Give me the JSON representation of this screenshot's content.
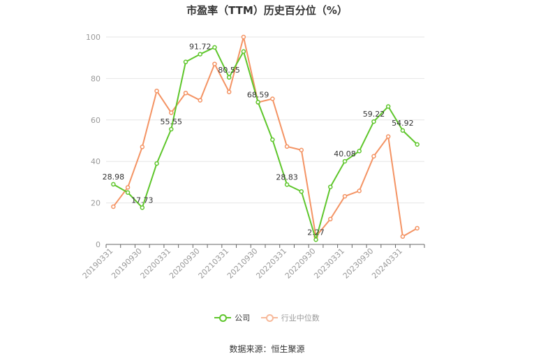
{
  "title": "市盈率（TTM）历史百分位（%）",
  "source": "数据来源：恒生聚源",
  "legend": [
    {
      "name": "公司",
      "color": "#5ec62b"
    },
    {
      "name": "行业中位数",
      "color": "#f49363"
    }
  ],
  "chart_data": {
    "type": "line",
    "title": "市盈率（TTM）历史百分位（%）",
    "ylim": [
      0,
      100
    ],
    "yticks": [
      0,
      20,
      40,
      60,
      80,
      100
    ],
    "grid": true,
    "legend_position": "bottom",
    "x_tick_labels": [
      "20190331",
      "20190930",
      "20200331",
      "20200930",
      "20210331",
      "20210930",
      "20220331",
      "20220930",
      "20230331",
      "20230930",
      "20240331"
    ],
    "x": [
      "20190331",
      "20190630",
      "20190930",
      "20191231",
      "20200331",
      "20200630",
      "20200930",
      "20201231",
      "20210331",
      "20210630",
      "20210930",
      "20211231",
      "20220331",
      "20220630",
      "20220930",
      "20221231",
      "20230331",
      "20230630",
      "20230930",
      "20231231",
      "20240331",
      "20240630"
    ],
    "series": [
      {
        "name": "公司",
        "color": "#5ec62b",
        "values": [
          28.98,
          25.0,
          17.73,
          39.0,
          55.55,
          88.0,
          91.72,
          95.0,
          80.55,
          93.0,
          68.59,
          50.5,
          28.83,
          25.5,
          2.27,
          27.7,
          40.08,
          45.0,
          59.22,
          66.5,
          54.92,
          48.2
        ]
      },
      {
        "name": "行业中位数",
        "color": "#f49363",
        "values": [
          18.2,
          27.5,
          47.0,
          74.0,
          63.5,
          73.0,
          69.5,
          87.0,
          73.5,
          100.0,
          68.5,
          70.2,
          47.2,
          45.5,
          3.8,
          12.2,
          23.2,
          25.8,
          42.5,
          52.0,
          3.8,
          7.8
        ]
      }
    ],
    "data_labels": [
      {
        "series": 0,
        "index": 0,
        "text": "28.98"
      },
      {
        "series": 0,
        "index": 2,
        "text": "17.73"
      },
      {
        "series": 0,
        "index": 4,
        "text": "55.55"
      },
      {
        "series": 0,
        "index": 6,
        "text": "91.72"
      },
      {
        "series": 0,
        "index": 8,
        "text": "80.55"
      },
      {
        "series": 0,
        "index": 10,
        "text": "68.59"
      },
      {
        "series": 0,
        "index": 12,
        "text": "28.83"
      },
      {
        "series": 0,
        "index": 14,
        "text": "2.27"
      },
      {
        "series": 0,
        "index": 16,
        "text": "40.08"
      },
      {
        "series": 0,
        "index": 18,
        "text": "59.22"
      },
      {
        "series": 0,
        "index": 20,
        "text": "54.92"
      }
    ]
  }
}
